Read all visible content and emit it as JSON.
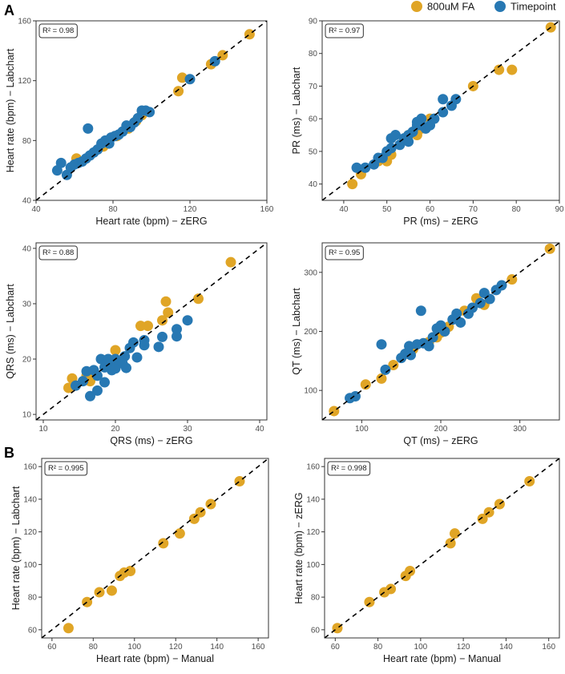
{
  "figure": {
    "panel_labels": [
      "A",
      "B"
    ],
    "legend": [
      {
        "label": "800uM FA",
        "color": "#E0A526"
      },
      {
        "label": "Timepoint",
        "color": "#2778B3"
      }
    ]
  },
  "chart_data": [
    {
      "type": "scatter",
      "xlabel": "Heart rate (bpm) − zERG",
      "ylabel": "Heart rate (bpm) − Labchart",
      "xlim": [
        40,
        160
      ],
      "ylim": [
        40,
        160
      ],
      "xticks": [
        40,
        80,
        120,
        160
      ],
      "yticks": [
        40,
        80,
        120,
        160
      ],
      "r2_label": "R² = 0.98",
      "reference_line": "y = x",
      "series": [
        {
          "name": "800uM FA",
          "color": "#E0A526",
          "points": [
            [
              61,
              68
            ],
            [
              75,
              76
            ],
            [
              82,
              83
            ],
            [
              88,
              88
            ],
            [
              92,
              93
            ],
            [
              95,
              97
            ],
            [
              114,
              113
            ],
            [
              116,
              122
            ],
            [
              131,
              131
            ],
            [
              137,
              137
            ],
            [
              151,
              151
            ]
          ]
        },
        {
          "name": "Timepoint",
          "color": "#2778B3",
          "points": [
            [
              51,
              60
            ],
            [
              53,
              65
            ],
            [
              56,
              57
            ],
            [
              58,
              62
            ],
            [
              60,
              64
            ],
            [
              62,
              65
            ],
            [
              64,
              66
            ],
            [
              66,
              68
            ],
            [
              67,
              88
            ],
            [
              68,
              70
            ],
            [
              70,
              72
            ],
            [
              72,
              74
            ],
            [
              74,
              78
            ],
            [
              76,
              80
            ],
            [
              78,
              78
            ],
            [
              79,
              82
            ],
            [
              81,
              83
            ],
            [
              83,
              84
            ],
            [
              85,
              86
            ],
            [
              87,
              90
            ],
            [
              89,
              89
            ],
            [
              91,
              92
            ],
            [
              93,
              95
            ],
            [
              95,
              100
            ],
            [
              97,
              100
            ],
            [
              99,
              99
            ],
            [
              120,
              121
            ],
            [
              133,
              133
            ]
          ]
        }
      ]
    },
    {
      "type": "scatter",
      "xlabel": "PR (ms) − zERG",
      "ylabel": "PR (ms) − Labchart",
      "xlim": [
        35,
        90
      ],
      "ylim": [
        35,
        90
      ],
      "xticks": [
        40,
        50,
        60,
        70,
        80,
        90
      ],
      "yticks": [
        40,
        50,
        60,
        70,
        80,
        90
      ],
      "r2_label": "R² = 0.97",
      "reference_line": "y = x",
      "series": [
        {
          "name": "800uM FA",
          "color": "#E0A526",
          "points": [
            [
              42,
              40
            ],
            [
              44,
              43
            ],
            [
              48,
              47
            ],
            [
              50,
              47
            ],
            [
              51,
              49
            ],
            [
              55,
              55
            ],
            [
              57,
              55
            ],
            [
              58,
              57
            ],
            [
              60,
              60
            ],
            [
              70,
              70
            ],
            [
              76,
              75
            ],
            [
              79,
              75
            ],
            [
              88,
              88
            ]
          ]
        },
        {
          "name": "Timepoint",
          "color": "#2778B3",
          "points": [
            [
              43,
              45
            ],
            [
              45,
              45
            ],
            [
              47,
              46
            ],
            [
              48,
              48
            ],
            [
              49,
              48
            ],
            [
              50,
              50
            ],
            [
              51,
              51
            ],
            [
              51,
              54
            ],
            [
              52,
              55
            ],
            [
              53,
              52
            ],
            [
              54,
              54
            ],
            [
              55,
              53
            ],
            [
              55,
              55
            ],
            [
              56,
              56
            ],
            [
              57,
              58
            ],
            [
              57,
              59
            ],
            [
              58,
              58
            ],
            [
              58,
              60
            ],
            [
              59,
              57
            ],
            [
              60,
              58
            ],
            [
              61,
              60
            ],
            [
              63,
              62
            ],
            [
              63,
              66
            ],
            [
              65,
              64
            ],
            [
              66,
              66
            ]
          ]
        }
      ]
    },
    {
      "type": "scatter",
      "xlabel": "QRS (ms) − zERG",
      "ylabel": "QRS (ms) − Labchart",
      "xlim": [
        9,
        41
      ],
      "ylim": [
        9,
        41
      ],
      "xticks": [
        10,
        20,
        30,
        40
      ],
      "yticks": [
        10,
        20,
        30,
        40
      ],
      "r2_label": "R² = 0.88",
      "reference_line": "y = x",
      "series": [
        {
          "name": "800uM FA",
          "color": "#E0A526",
          "points": [
            [
              13.5,
              14.8
            ],
            [
              14,
              16.5
            ],
            [
              16,
              17
            ],
            [
              16.5,
              16
            ],
            [
              16.5,
              17.4
            ],
            [
              20,
              21.6
            ],
            [
              23.5,
              26
            ],
            [
              24.5,
              26
            ],
            [
              26.5,
              27
            ],
            [
              27,
              30.4
            ],
            [
              27.3,
              28.4
            ],
            [
              31.5,
              30.9
            ],
            [
              36,
              37.5
            ]
          ]
        },
        {
          "name": "Timepoint",
          "color": "#2778B3",
          "points": [
            [
              14.5,
              15.2
            ],
            [
              15.5,
              16
            ],
            [
              16,
              17.8
            ],
            [
              16.5,
              13.3
            ],
            [
              17,
              18
            ],
            [
              17.5,
              14.3
            ],
            [
              17.5,
              17
            ],
            [
              18,
              20
            ],
            [
              18.5,
              18.5
            ],
            [
              18.5,
              15.8
            ],
            [
              19,
              20
            ],
            [
              19,
              19.4
            ],
            [
              19.5,
              18
            ],
            [
              20,
              18.3
            ],
            [
              20,
              20
            ],
            [
              21,
              19.2
            ],
            [
              21.3,
              20.5
            ],
            [
              21.5,
              18.4
            ],
            [
              22,
              22
            ],
            [
              22.5,
              23
            ],
            [
              23,
              20.3
            ],
            [
              24,
              22.5
            ],
            [
              24,
              23.4
            ],
            [
              26,
              22.2
            ],
            [
              26.5,
              24
            ],
            [
              28.5,
              24.1
            ],
            [
              28.5,
              25.4
            ],
            [
              30,
              27
            ]
          ]
        }
      ]
    },
    {
      "type": "scatter",
      "xlabel": "QT (ms) − zERG",
      "ylabel": "QT (ms) − Labchart",
      "xlim": [
        50,
        350
      ],
      "ylim": [
        50,
        350
      ],
      "xticks": [
        100,
        200,
        300
      ],
      "yticks": [
        100,
        200,
        300
      ],
      "r2_label": "R² = 0.95",
      "reference_line": "y = x",
      "series": [
        {
          "name": "800uM FA",
          "color": "#E0A526",
          "points": [
            [
              65,
              65
            ],
            [
              105,
              110
            ],
            [
              125,
              120
            ],
            [
              140,
              143
            ],
            [
              165,
              170
            ],
            [
              185,
              182
            ],
            [
              195,
              190
            ],
            [
              200,
              198
            ],
            [
              210,
              208
            ],
            [
              230,
              235
            ],
            [
              245,
              256
            ],
            [
              255,
              245
            ],
            [
              290,
              288
            ],
            [
              338,
              340
            ]
          ]
        },
        {
          "name": "Timepoint",
          "color": "#2778B3",
          "points": [
            [
              85,
              87
            ],
            [
              92,
              90
            ],
            [
              125,
              178
            ],
            [
              130,
              135
            ],
            [
              150,
              155
            ],
            [
              155,
              162
            ],
            [
              160,
              175
            ],
            [
              162,
              160
            ],
            [
              170,
              178
            ],
            [
              175,
              235
            ],
            [
              178,
              180
            ],
            [
              185,
              175
            ],
            [
              190,
              190
            ],
            [
              195,
              205
            ],
            [
              200,
              210
            ],
            [
              205,
              200
            ],
            [
              215,
              220
            ],
            [
              220,
              230
            ],
            [
              225,
              215
            ],
            [
              235,
              230
            ],
            [
              240,
              240
            ],
            [
              250,
              248
            ],
            [
              255,
              265
            ],
            [
              262,
              255
            ],
            [
              270,
              270
            ],
            [
              277,
              278
            ]
          ]
        }
      ]
    },
    {
      "type": "scatter",
      "xlabel": "Heart rate (bpm) − Manual",
      "ylabel": "Heart rate (bpm) − Labchart",
      "xlim": [
        55,
        165
      ],
      "ylim": [
        55,
        165
      ],
      "xticks": [
        60,
        80,
        100,
        120,
        140,
        160
      ],
      "yticks": [
        60,
        80,
        100,
        120,
        140,
        160
      ],
      "r2_label": "R² = 0.995",
      "reference_line": "y = x",
      "series": [
        {
          "name": "800uM FA",
          "color": "#E0A526",
          "points": [
            [
              68,
              61
            ],
            [
              77,
              77
            ],
            [
              83,
              83
            ],
            [
              89,
              84
            ],
            [
              93,
              93
            ],
            [
              95,
              95
            ],
            [
              98,
              96
            ],
            [
              114,
              113
            ],
            [
              122,
              119
            ],
            [
              129,
              128
            ],
            [
              132,
              132
            ],
            [
              137,
              137
            ],
            [
              151,
              151
            ]
          ]
        }
      ]
    },
    {
      "type": "scatter",
      "xlabel": "Heart rate (bpm) − Manual",
      "ylabel": "Heart rate (bpm) − zERG",
      "xlim": [
        55,
        165
      ],
      "ylim": [
        55,
        165
      ],
      "xticks": [
        60,
        80,
        100,
        120,
        140,
        160
      ],
      "yticks": [
        60,
        80,
        100,
        120,
        140,
        160
      ],
      "r2_label": "R² = 0.998",
      "reference_line": "y = x",
      "series": [
        {
          "name": "800uM FA",
          "color": "#E0A526",
          "points": [
            [
              61,
              61
            ],
            [
              76,
              77
            ],
            [
              83,
              83
            ],
            [
              86,
              85
            ],
            [
              93,
              93
            ],
            [
              95,
              96
            ],
            [
              114,
              113
            ],
            [
              116,
              119
            ],
            [
              129,
              128
            ],
            [
              132,
              132
            ],
            [
              137,
              137
            ],
            [
              151,
              151
            ]
          ]
        }
      ]
    }
  ]
}
